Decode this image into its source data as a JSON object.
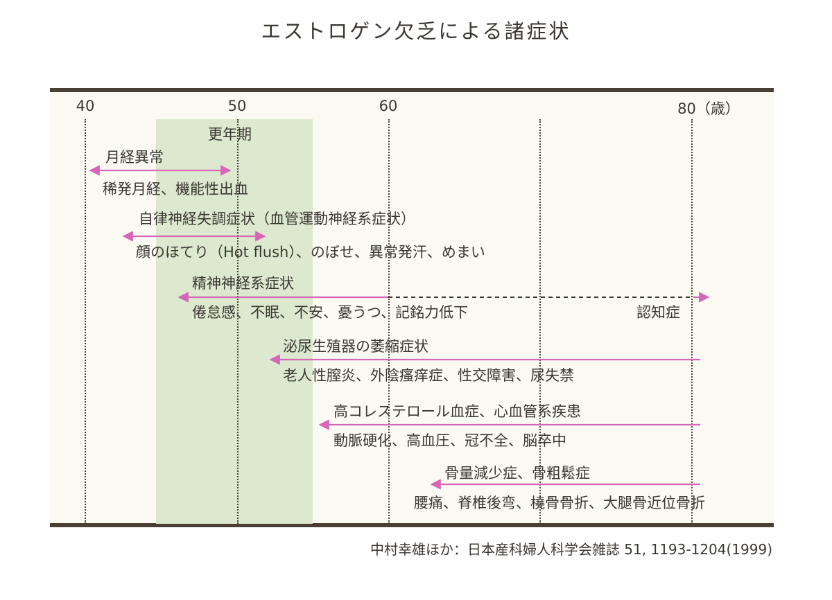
{
  "title": "エストロゲン欠乏による諸症状",
  "axis": {
    "ticks": [
      "40",
      "50",
      "60",
      "80（歳）"
    ]
  },
  "menopause_label": "更年期",
  "groups": {
    "menstrual": {
      "name": "月経異常",
      "details": "稀発月経、機能性出血"
    },
    "autonomic": {
      "name": "自律神経失調症状（血管運動神経系症状）",
      "details": "顔のほてり（Hot flush）、のぼせ、異常発汗、めまい"
    },
    "psych": {
      "name": "精神神経系症状",
      "details": "倦怠感、不眠、不安、憂うつ、記銘力低下",
      "extension": "認知症"
    },
    "urogenital": {
      "name": "泌尿生殖器の萎縮症状",
      "details": "老人性膣炎、外陰瘙痒症、性交障害、尿失禁"
    },
    "cardio": {
      "name": "高コレステロール血症、心血管系疾患",
      "details": "動脈硬化、高血圧、冠不全、脳卒中"
    },
    "bone": {
      "name": "骨量減少症、骨粗鬆症",
      "details": "腰痛、脊椎後弯、橈骨骨折、大腿骨近位骨折"
    }
  },
  "source": "中村幸雄ほか：日本産科婦人科学会雑誌 51, 1193-1204(1999)",
  "colors": {
    "arrow": "#d766b9",
    "menopause_band": "#dce9cf",
    "panel": "#fafaf3",
    "rule": "#4a3f35",
    "text": "#3b3631"
  }
}
